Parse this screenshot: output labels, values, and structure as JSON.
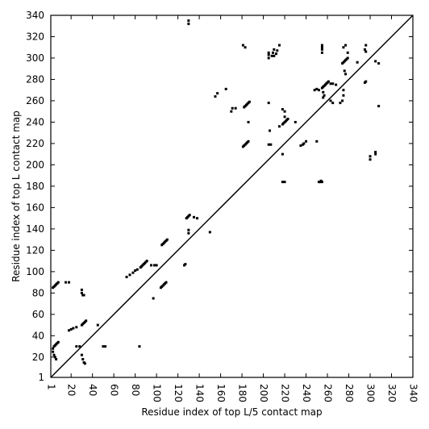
{
  "chart_data": {
    "type": "scatter",
    "title": "",
    "xlabel": "Residue index of top L/5 contact map",
    "ylabel": "Residue index of top L contact map",
    "xlim": [
      1,
      340
    ],
    "ylim": [
      1,
      340
    ],
    "xticks": [
      1,
      20,
      40,
      60,
      80,
      100,
      120,
      140,
      160,
      180,
      200,
      220,
      240,
      260,
      280,
      300,
      320,
      340
    ],
    "yticks": [
      1,
      20,
      40,
      60,
      80,
      100,
      120,
      140,
      160,
      180,
      200,
      220,
      240,
      260,
      280,
      300,
      320,
      340
    ],
    "xtick_labels": [
      "1",
      "20",
      "40",
      "60",
      "80",
      "100",
      "120",
      "140",
      "160",
      "180",
      "200",
      "220",
      "240",
      "260",
      "280",
      "300",
      "320",
      "340"
    ],
    "ytick_labels": [
      "1",
      "20",
      "40",
      "60",
      "80",
      "100",
      "120",
      "140",
      "160",
      "180",
      "200",
      "220",
      "240",
      "260",
      "280",
      "300",
      "320",
      "340"
    ],
    "grid": false,
    "diagonal": [
      [
        1,
        1
      ],
      [
        340,
        340
      ]
    ],
    "marker_color": "#000000",
    "series": [
      {
        "values": [
          [
            3,
            28
          ],
          [
            4,
            30
          ],
          [
            5,
            31
          ],
          [
            6,
            32
          ],
          [
            7,
            33
          ],
          [
            8,
            34
          ],
          [
            3,
            25
          ],
          [
            4,
            22
          ],
          [
            5,
            20
          ],
          [
            6,
            18
          ],
          [
            3,
            85
          ],
          [
            4,
            86
          ],
          [
            5,
            87
          ],
          [
            6,
            88
          ],
          [
            7,
            89
          ],
          [
            8,
            90
          ],
          [
            15,
            90
          ],
          [
            18,
            90
          ],
          [
            30,
            80
          ],
          [
            30,
            83
          ],
          [
            31,
            78
          ],
          [
            32,
            78
          ],
          [
            30,
            22
          ],
          [
            31,
            18
          ],
          [
            32,
            15
          ],
          [
            33,
            14
          ],
          [
            30,
            50
          ],
          [
            31,
            51
          ],
          [
            32,
            52
          ],
          [
            33,
            53
          ],
          [
            34,
            54
          ],
          [
            25,
            48
          ],
          [
            22,
            47
          ],
          [
            20,
            46
          ],
          [
            18,
            45
          ],
          [
            25,
            30
          ],
          [
            28,
            30
          ],
          [
            50,
            30
          ],
          [
            52,
            30
          ],
          [
            84,
            30
          ],
          [
            45,
            50
          ],
          [
            85,
            104
          ],
          [
            86,
            105
          ],
          [
            87,
            106
          ],
          [
            88,
            107
          ],
          [
            89,
            108
          ],
          [
            90,
            109
          ],
          [
            91,
            110
          ],
          [
            95,
            106
          ],
          [
            98,
            106
          ],
          [
            100,
            106
          ],
          [
            72,
            95
          ],
          [
            75,
            97
          ],
          [
            78,
            99
          ],
          [
            80,
            101
          ],
          [
            82,
            102
          ],
          [
            104,
            85
          ],
          [
            105,
            86
          ],
          [
            106,
            87
          ],
          [
            107,
            88
          ],
          [
            108,
            89
          ],
          [
            109,
            90
          ],
          [
            97,
            75
          ],
          [
            105,
            125
          ],
          [
            106,
            126
          ],
          [
            107,
            127
          ],
          [
            108,
            128
          ],
          [
            109,
            129
          ],
          [
            110,
            130
          ],
          [
            126,
            106
          ],
          [
            127,
            107
          ],
          [
            128,
            150
          ],
          [
            129,
            151
          ],
          [
            130,
            152
          ],
          [
            131,
            153
          ],
          [
            130,
            136
          ],
          [
            130,
            139
          ],
          [
            135,
            151
          ],
          [
            138,
            150
          ],
          [
            150,
            137
          ],
          [
            130,
            332
          ],
          [
            130,
            335
          ],
          [
            155,
            264
          ],
          [
            157,
            267
          ],
          [
            165,
            271
          ],
          [
            170,
            250
          ],
          [
            171,
            253
          ],
          [
            174,
            253
          ],
          [
            181,
            217
          ],
          [
            182,
            218
          ],
          [
            183,
            219
          ],
          [
            184,
            220
          ],
          [
            185,
            221
          ],
          [
            186,
            222
          ],
          [
            182,
            254
          ],
          [
            183,
            255
          ],
          [
            184,
            256
          ],
          [
            185,
            257
          ],
          [
            186,
            258
          ],
          [
            187,
            259
          ],
          [
            181,
            312
          ],
          [
            183,
            310
          ],
          [
            186,
            240
          ],
          [
            205,
            258
          ],
          [
            206,
            232
          ],
          [
            205,
            219
          ],
          [
            207,
            219
          ],
          [
            205,
            300
          ],
          [
            205,
            303
          ],
          [
            205,
            305
          ],
          [
            208,
            302
          ],
          [
            209,
            305
          ],
          [
            210,
            302
          ],
          [
            210,
            308
          ],
          [
            212,
            304
          ],
          [
            213,
            307
          ],
          [
            215,
            312
          ],
          [
            218,
            238
          ],
          [
            219,
            239
          ],
          [
            220,
            240
          ],
          [
            221,
            241
          ],
          [
            222,
            242
          ],
          [
            223,
            243
          ],
          [
            215,
            236
          ],
          [
            220,
            245
          ],
          [
            220,
            250
          ],
          [
            218,
            252
          ],
          [
            218,
            210
          ],
          [
            218,
            184
          ],
          [
            220,
            184
          ],
          [
            230,
            240
          ],
          [
            235,
            218
          ],
          [
            237,
            219
          ],
          [
            238,
            220
          ],
          [
            240,
            222
          ],
          [
            250,
            222
          ],
          [
            252,
            184
          ],
          [
            253,
            184
          ],
          [
            254,
            185
          ],
          [
            255,
            184
          ],
          [
            255,
            272
          ],
          [
            256,
            273
          ],
          [
            257,
            274
          ],
          [
            258,
            275
          ],
          [
            259,
            276
          ],
          [
            260,
            277
          ],
          [
            261,
            278
          ],
          [
            248,
            270
          ],
          [
            250,
            271
          ],
          [
            252,
            270
          ],
          [
            256,
            263
          ],
          [
            257,
            265
          ],
          [
            256,
            268
          ],
          [
            255,
            305
          ],
          [
            255,
            308
          ],
          [
            255,
            310
          ],
          [
            255,
            312
          ],
          [
            263,
            276
          ],
          [
            265,
            276
          ],
          [
            268,
            275
          ],
          [
            263,
            260
          ],
          [
            265,
            258
          ],
          [
            272,
            258
          ],
          [
            274,
            260
          ],
          [
            275,
            265
          ],
          [
            275,
            270
          ],
          [
            274,
            295
          ],
          [
            275,
            296
          ],
          [
            276,
            297
          ],
          [
            277,
            298
          ],
          [
            278,
            299
          ],
          [
            279,
            300
          ],
          [
            276,
            288
          ],
          [
            277,
            285
          ],
          [
            275,
            310
          ],
          [
            277,
            312
          ],
          [
            279,
            305
          ],
          [
            288,
            296
          ],
          [
            295,
            277
          ],
          [
            296,
            278
          ],
          [
            295,
            308
          ],
          [
            296,
            306
          ],
          [
            296,
            312
          ],
          [
            300,
            205
          ],
          [
            300,
            208
          ],
          [
            305,
            210
          ],
          [
            305,
            212
          ],
          [
            305,
            297
          ],
          [
            308,
            295
          ],
          [
            308,
            255
          ]
        ]
      }
    ]
  }
}
